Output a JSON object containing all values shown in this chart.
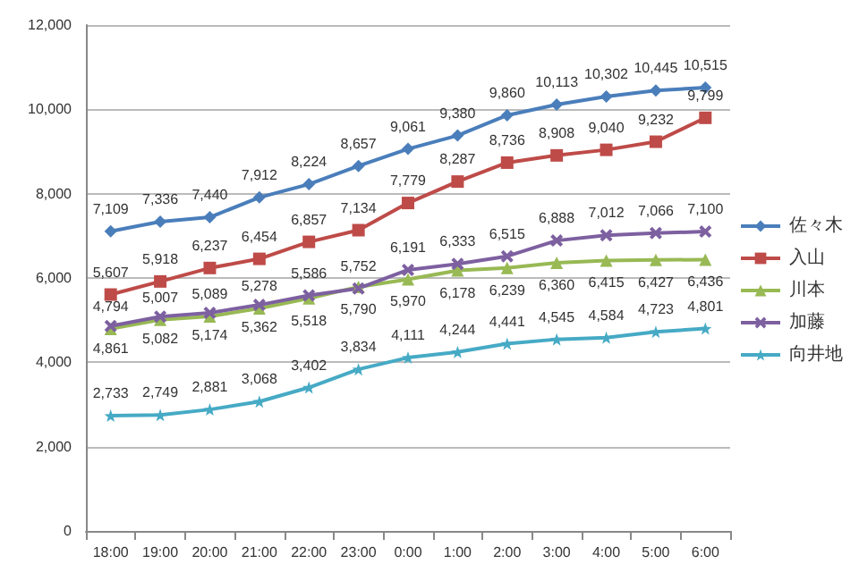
{
  "chart_data": {
    "type": "line",
    "categories": [
      "18:00",
      "19:00",
      "20:00",
      "21:00",
      "22:00",
      "23:00",
      "0:00",
      "1:00",
      "2:00",
      "3:00",
      "4:00",
      "5:00",
      "6:00"
    ],
    "series": [
      {
        "name": "佐々木",
        "color": "#4a7ebb",
        "marker": "diamond",
        "values": [
          7109,
          7336,
          7440,
          7912,
          8224,
          8657,
          9061,
          9380,
          9860,
          10113,
          10302,
          10445,
          10515
        ],
        "value_labels": [
          "7,109",
          "7,336",
          "7,440",
          "7,912",
          "8,224",
          "8,657",
          "9,061",
          "9,380",
          "9,860",
          "10,113",
          "10,302",
          "10,445",
          "10,515"
        ]
      },
      {
        "name": "入山",
        "color": "#be4b48",
        "marker": "square",
        "values": [
          5607,
          5918,
          6237,
          6454,
          6857,
          7134,
          7779,
          8287,
          8736,
          8908,
          9040,
          9232,
          9799
        ],
        "value_labels": [
          "5,607",
          "5,918",
          "6,237",
          "6,454",
          "6,857",
          "7,134",
          "7,779",
          "8,287",
          "8,736",
          "8,908",
          "9,040",
          "9,232",
          "9,799"
        ]
      },
      {
        "name": "川本",
        "color": "#98b954",
        "marker": "triangle",
        "values": [
          4794,
          5007,
          5089,
          5278,
          5518,
          5790,
          5970,
          6178,
          6239,
          6360,
          6415,
          6427,
          6436
        ],
        "value_labels": [
          "4,794",
          "5,007",
          "5,089",
          "5,278",
          "5,518",
          "5,790",
          "5,970",
          "6,178",
          "6,239",
          "6,360",
          "6,415",
          "6,427",
          "6,436"
        ]
      },
      {
        "name": "加藤",
        "color": "#7d60a0",
        "marker": "cross",
        "values": [
          4861,
          5082,
          5174,
          5362,
          5586,
          5752,
          6191,
          6333,
          6515,
          6888,
          7012,
          7066,
          7100
        ],
        "value_labels": [
          "4,861",
          "5,082",
          "5,174",
          "5,362",
          "5,586",
          "5,752",
          "6,191",
          "6,333",
          "6,515",
          "6,888",
          "7,012",
          "7,066",
          "7,100"
        ]
      },
      {
        "name": "向井地",
        "color": "#46aac5",
        "marker": "star",
        "values": [
          2733,
          2749,
          2881,
          3068,
          3402,
          3834,
          4111,
          4244,
          4441,
          4545,
          4584,
          4723,
          4801
        ],
        "value_labels": [
          "2,733",
          "2,749",
          "2,881",
          "3,068",
          "3,402",
          "3,834",
          "4,111",
          "4,244",
          "4,441",
          "4,545",
          "4,584",
          "4,723",
          "4,801"
        ]
      }
    ],
    "ylim": [
      0,
      12000
    ],
    "yticks": [
      0,
      {
        "value": 2000,
        "label": "2,000"
      },
      {
        "value": 4000,
        "label": "4,000"
      },
      {
        "value": 6000,
        "label": "6,000"
      },
      {
        "value": 8000,
        "label": "8,000"
      },
      {
        "value": 10000,
        "label": "10,000"
      },
      {
        "value": 12000,
        "label": "12,000"
      }
    ],
    "grid": "y",
    "legend": "right"
  }
}
